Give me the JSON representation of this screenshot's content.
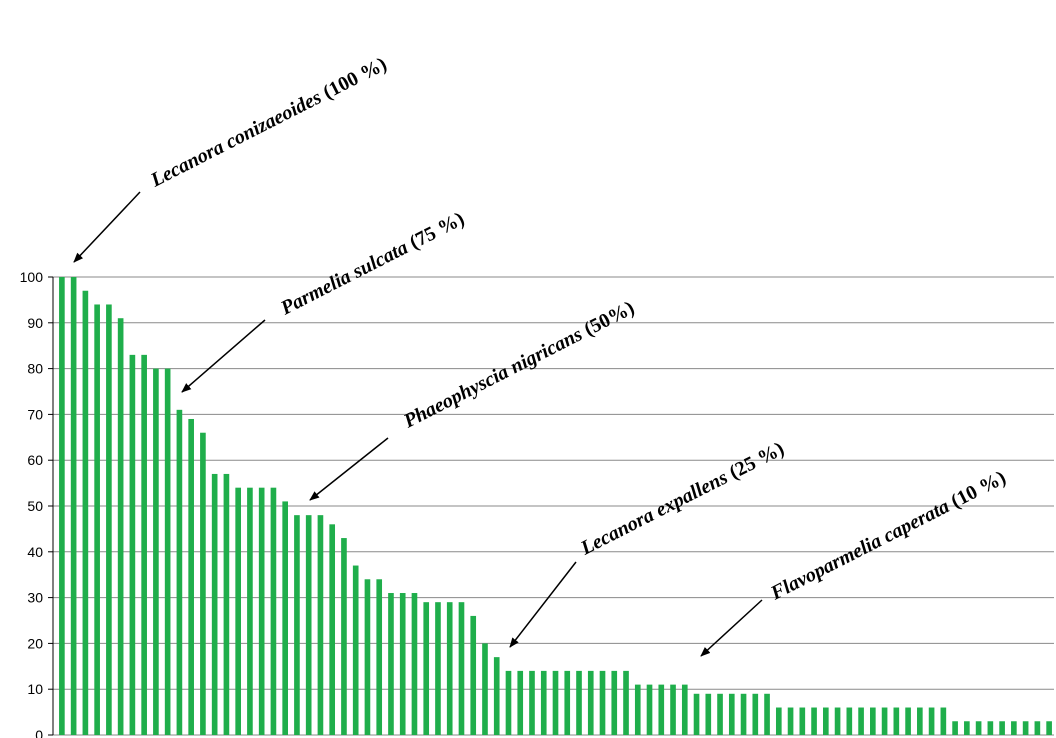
{
  "chart_data": {
    "type": "bar",
    "title": "",
    "xlabel": "",
    "ylabel": "",
    "ylim": [
      0,
      100
    ],
    "yticks": [
      0,
      10,
      20,
      30,
      40,
      50,
      60,
      70,
      80,
      90,
      100
    ],
    "grid": true,
    "bar_color": "#1fae4b",
    "values": [
      100,
      100,
      97,
      94,
      94,
      91,
      83,
      83,
      80,
      80,
      71,
      69,
      66,
      57,
      57,
      54,
      54,
      54,
      54,
      51,
      48,
      48,
      48,
      46,
      43,
      37,
      34,
      34,
      31,
      31,
      31,
      29,
      29,
      29,
      29,
      26,
      20,
      17,
      14,
      14,
      14,
      14,
      14,
      14,
      14,
      14,
      14,
      14,
      14,
      11,
      11,
      11,
      11,
      11,
      9,
      9,
      9,
      9,
      9,
      9,
      9,
      6,
      6,
      6,
      6,
      6,
      6,
      6,
      6,
      6,
      6,
      6,
      6,
      6,
      6,
      6,
      3,
      3,
      3,
      3,
      3,
      3,
      3,
      3,
      3
    ],
    "annotations": [
      {
        "species": "Lecanora conizaeoides",
        "pct": "(100 %)",
        "bar_index": 0
      },
      {
        "species": "Parmelia sulcata",
        "pct": "(75 %)",
        "bar_index": 10
      },
      {
        "species": "Phaeophyscia nigricans",
        "pct": "(50%)",
        "bar_index": 21
      },
      {
        "species": "Lecanora expallens",
        "pct": "(25 %)",
        "bar_index": 37
      },
      {
        "species": "Flavoparmelia caperata",
        "pct": "(10 %)",
        "bar_index": 54
      }
    ]
  }
}
